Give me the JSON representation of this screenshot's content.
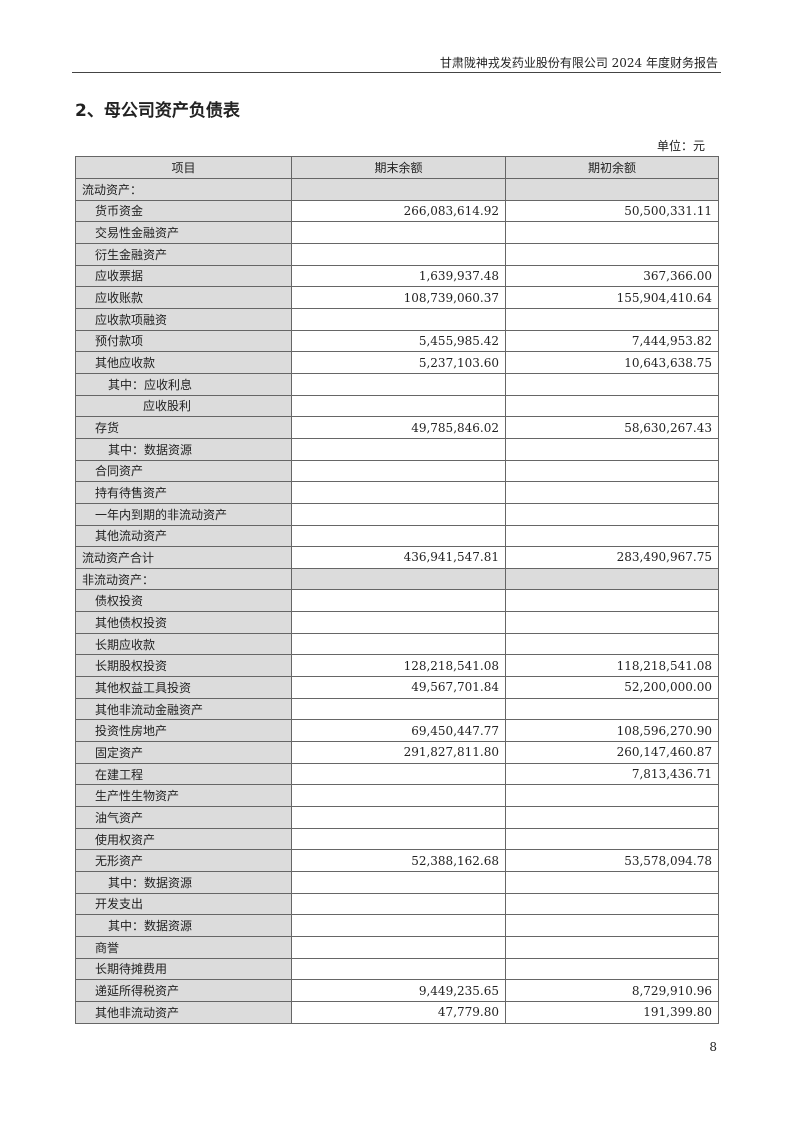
{
  "header": {
    "text": "甘肃陇神戎发药业股份有限公司 2024 年度财务报告"
  },
  "title": "2、母公司资产负债表",
  "unit": "单位：元",
  "columns": [
    "项目",
    "期末余额",
    "期初余额"
  ],
  "rows": [
    {
      "item": "流动资产：",
      "end": "",
      "begin": "",
      "level": 0,
      "section": true
    },
    {
      "item": "货币资金",
      "end": "266,083,614.92",
      "begin": "50,500,331.11",
      "level": 1
    },
    {
      "item": "交易性金融资产",
      "end": "",
      "begin": "",
      "level": 1
    },
    {
      "item": "衍生金融资产",
      "end": "",
      "begin": "",
      "level": 1
    },
    {
      "item": "应收票据",
      "end": "1,639,937.48",
      "begin": "367,366.00",
      "level": 1
    },
    {
      "item": "应收账款",
      "end": "108,739,060.37",
      "begin": "155,904,410.64",
      "level": 1
    },
    {
      "item": "应收款项融资",
      "end": "",
      "begin": "",
      "level": 1
    },
    {
      "item": "预付款项",
      "end": "5,455,985.42",
      "begin": "7,444,953.82",
      "level": 1
    },
    {
      "item": "其他应收款",
      "end": "5,237,103.60",
      "begin": "10,643,638.75",
      "level": 1
    },
    {
      "item": "其中：应收利息",
      "end": "",
      "begin": "",
      "level": 2
    },
    {
      "item": "应收股利",
      "end": "",
      "begin": "",
      "level": 3
    },
    {
      "item": "存货",
      "end": "49,785,846.02",
      "begin": "58,630,267.43",
      "level": 1
    },
    {
      "item": "其中：数据资源",
      "end": "",
      "begin": "",
      "level": 2
    },
    {
      "item": "合同资产",
      "end": "",
      "begin": "",
      "level": 1
    },
    {
      "item": "持有待售资产",
      "end": "",
      "begin": "",
      "level": 1
    },
    {
      "item": "一年内到期的非流动资产",
      "end": "",
      "begin": "",
      "level": 1
    },
    {
      "item": "其他流动资产",
      "end": "",
      "begin": "",
      "level": 1
    },
    {
      "item": "流动资产合计",
      "end": "436,941,547.81",
      "begin": "283,490,967.75",
      "level": 0
    },
    {
      "item": "非流动资产：",
      "end": "",
      "begin": "",
      "level": 0,
      "section": true
    },
    {
      "item": "债权投资",
      "end": "",
      "begin": "",
      "level": 1
    },
    {
      "item": "其他债权投资",
      "end": "",
      "begin": "",
      "level": 1
    },
    {
      "item": "长期应收款",
      "end": "",
      "begin": "",
      "level": 1
    },
    {
      "item": "长期股权投资",
      "end": "128,218,541.08",
      "begin": "118,218,541.08",
      "level": 1
    },
    {
      "item": "其他权益工具投资",
      "end": "49,567,701.84",
      "begin": "52,200,000.00",
      "level": 1
    },
    {
      "item": "其他非流动金融资产",
      "end": "",
      "begin": "",
      "level": 1
    },
    {
      "item": "投资性房地产",
      "end": "69,450,447.77",
      "begin": "108,596,270.90",
      "level": 1
    },
    {
      "item": "固定资产",
      "end": "291,827,811.80",
      "begin": "260,147,460.87",
      "level": 1
    },
    {
      "item": "在建工程",
      "end": "",
      "begin": "7,813,436.71",
      "level": 1
    },
    {
      "item": "生产性生物资产",
      "end": "",
      "begin": "",
      "level": 1
    },
    {
      "item": "油气资产",
      "end": "",
      "begin": "",
      "level": 1
    },
    {
      "item": "使用权资产",
      "end": "",
      "begin": "",
      "level": 1
    },
    {
      "item": "无形资产",
      "end": "52,388,162.68",
      "begin": "53,578,094.78",
      "level": 1
    },
    {
      "item": "其中：数据资源",
      "end": "",
      "begin": "",
      "level": 2
    },
    {
      "item": "开发支出",
      "end": "",
      "begin": "",
      "level": 1
    },
    {
      "item": "其中：数据资源",
      "end": "",
      "begin": "",
      "level": 2
    },
    {
      "item": "商誉",
      "end": "",
      "begin": "",
      "level": 1
    },
    {
      "item": "长期待摊费用",
      "end": "",
      "begin": "",
      "level": 1
    },
    {
      "item": "递延所得税资产",
      "end": "9,449,235.65",
      "begin": "8,729,910.96",
      "level": 1
    },
    {
      "item": "其他非流动资产",
      "end": "47,779.80",
      "begin": "191,399.80",
      "level": 1
    }
  ],
  "page_number": "8"
}
